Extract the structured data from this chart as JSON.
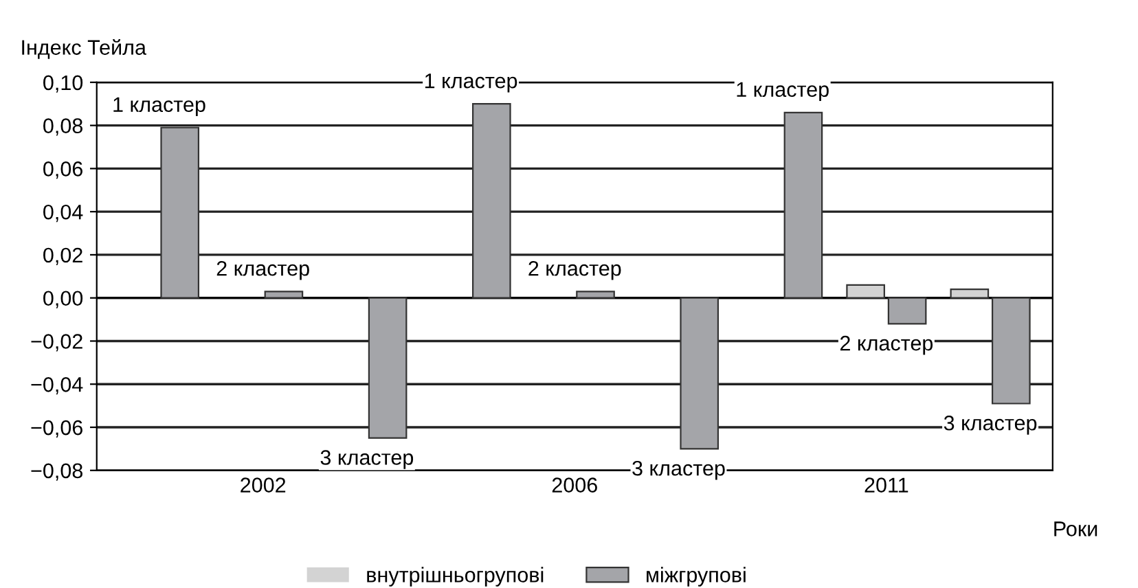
{
  "chart_data": {
    "type": "bar",
    "ylabel": "Індекс Тейла",
    "xlabel": "Роки",
    "categories": [
      null,
      "2002",
      null,
      null,
      "2006",
      null,
      null,
      "2011",
      null
    ],
    "series": [
      {
        "name": "внутрішньогрупові",
        "color": "#d3d3d3",
        "values": [
          0,
          0,
          0,
          0,
          0,
          0,
          0,
          0.006,
          0.004
        ]
      },
      {
        "name": "міжгрупові",
        "color": "#a4a5a9",
        "values": [
          0.079,
          0.003,
          -0.065,
          0.09,
          0.003,
          -0.07,
          0.086,
          -0.012,
          -0.049
        ]
      }
    ],
    "ylim": [
      -0.08,
      0.1
    ],
    "yticks": [
      {
        "value": -0.08,
        "label": "−0,08"
      },
      {
        "value": -0.06,
        "label": "−0,06"
      },
      {
        "value": -0.04,
        "label": "−0,04"
      },
      {
        "value": -0.02,
        "label": "−0,02"
      },
      {
        "value": 0,
        "label": "0,00"
      },
      {
        "value": 0.02,
        "label": "0,02"
      },
      {
        "value": 0.04,
        "label": "0,04"
      },
      {
        "value": 0.06,
        "label": "0,06"
      },
      {
        "value": 0.08,
        "label": "0,08"
      },
      {
        "value": 0.1,
        "label": "0,10"
      }
    ],
    "grid": "y",
    "legend": "bottom",
    "annotations": [
      "1 кластер",
      "2 кластер",
      "3 кластер",
      "1 кластер",
      "2 кластер",
      "3 кластер",
      "1 кластер",
      "2 кластер",
      "3 кластер"
    ]
  }
}
